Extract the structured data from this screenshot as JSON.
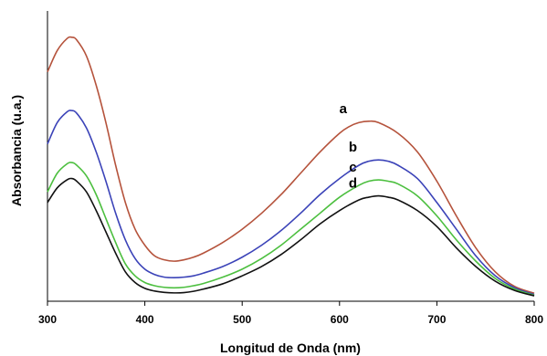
{
  "chart_data": {
    "type": "line",
    "title": "",
    "xlabel": "Longitud de Onda (nm)",
    "ylabel": "Absorbancia (u.a.)",
    "xlim": [
      300,
      800
    ],
    "ylim": [
      0,
      1
    ],
    "x_ticks": [
      "300",
      "400",
      "500",
      "600",
      "700",
      "800"
    ],
    "y_ticks_shown": false,
    "grid": false,
    "legend": "inline labels near right peak",
    "series": [
      {
        "name": "a",
        "color": "#b5533c",
        "x": [
          300,
          310,
          320,
          325,
          330,
          340,
          350,
          360,
          370,
          380,
          390,
          400,
          410,
          420,
          430,
          440,
          450,
          460,
          480,
          500,
          520,
          540,
          560,
          580,
          600,
          610,
          620,
          630,
          640,
          660,
          680,
          700,
          720,
          740,
          760,
          780,
          800
        ],
        "values": [
          0.85,
          0.93,
          0.975,
          0.98,
          0.97,
          0.91,
          0.8,
          0.66,
          0.5,
          0.36,
          0.26,
          0.2,
          0.16,
          0.145,
          0.14,
          0.145,
          0.155,
          0.17,
          0.21,
          0.26,
          0.32,
          0.39,
          0.47,
          0.55,
          0.62,
          0.645,
          0.66,
          0.665,
          0.66,
          0.62,
          0.55,
          0.44,
          0.31,
          0.19,
          0.1,
          0.045,
          0.02
        ]
      },
      {
        "name": "b",
        "color": "#3b43b8",
        "x": [
          300,
          310,
          320,
          325,
          330,
          340,
          350,
          360,
          370,
          380,
          390,
          400,
          410,
          420,
          430,
          440,
          450,
          460,
          480,
          500,
          520,
          540,
          560,
          580,
          600,
          620,
          630,
          640,
          650,
          660,
          680,
          700,
          720,
          740,
          760,
          780,
          800
        ],
        "values": [
          0.58,
          0.66,
          0.7,
          0.705,
          0.695,
          0.64,
          0.55,
          0.44,
          0.32,
          0.22,
          0.15,
          0.11,
          0.09,
          0.08,
          0.078,
          0.08,
          0.085,
          0.095,
          0.12,
          0.155,
          0.2,
          0.255,
          0.32,
          0.39,
          0.45,
          0.5,
          0.515,
          0.52,
          0.515,
          0.5,
          0.45,
          0.36,
          0.26,
          0.16,
          0.085,
          0.04,
          0.015
        ]
      },
      {
        "name": "c",
        "color": "#4cbf3f",
        "x": [
          300,
          310,
          320,
          325,
          330,
          340,
          350,
          360,
          370,
          380,
          390,
          400,
          410,
          420,
          430,
          440,
          450,
          460,
          480,
          500,
          520,
          540,
          560,
          580,
          600,
          620,
          630,
          640,
          650,
          660,
          680,
          700,
          720,
          740,
          760,
          780,
          800
        ],
        "values": [
          0.4,
          0.47,
          0.505,
          0.51,
          0.5,
          0.46,
          0.39,
          0.3,
          0.21,
          0.13,
          0.085,
          0.06,
          0.048,
          0.042,
          0.04,
          0.042,
          0.048,
          0.056,
          0.08,
          0.11,
          0.15,
          0.2,
          0.26,
          0.32,
          0.38,
          0.425,
          0.44,
          0.445,
          0.44,
          0.43,
          0.385,
          0.31,
          0.22,
          0.14,
          0.075,
          0.035,
          0.012
        ]
      },
      {
        "name": "d",
        "color": "#111111",
        "x": [
          300,
          310,
          320,
          325,
          330,
          340,
          350,
          360,
          370,
          380,
          390,
          400,
          410,
          420,
          430,
          440,
          450,
          460,
          480,
          500,
          520,
          540,
          560,
          580,
          600,
          620,
          630,
          640,
          650,
          660,
          680,
          700,
          720,
          740,
          760,
          780,
          800
        ],
        "values": [
          0.36,
          0.415,
          0.445,
          0.45,
          0.44,
          0.4,
          0.33,
          0.25,
          0.17,
          0.1,
          0.06,
          0.038,
          0.028,
          0.023,
          0.021,
          0.022,
          0.027,
          0.035,
          0.055,
          0.085,
          0.12,
          0.165,
          0.22,
          0.28,
          0.33,
          0.37,
          0.38,
          0.385,
          0.38,
          0.37,
          0.33,
          0.27,
          0.19,
          0.12,
          0.065,
          0.03,
          0.01
        ]
      }
    ]
  }
}
